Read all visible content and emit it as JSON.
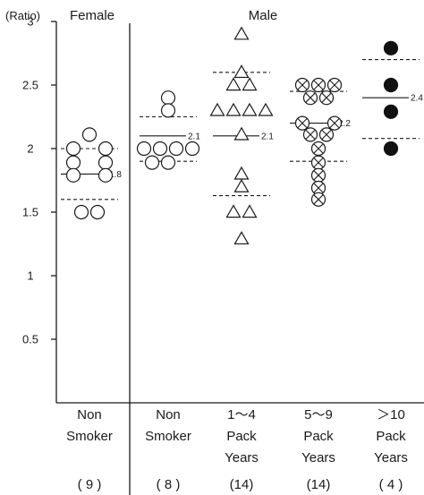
{
  "chart_data": {
    "type": "scatter",
    "y_unit": "(Ratio)",
    "yticks": [
      "0.5",
      "1",
      "1.5",
      "2",
      "2.5",
      "3"
    ],
    "ylim": [
      0.2,
      3.15
    ],
    "grid": false,
    "groups": [
      {
        "header": "Female",
        "labels": [
          "Non",
          "Smoker"
        ],
        "count": "( 9 )",
        "marker": "circle",
        "mean": 1.8,
        "mean_label": "1.8",
        "sd_upper": 2.0,
        "sd_lower": 1.6,
        "points": [
          [
            0,
            2.11
          ],
          [
            -1,
            2.0
          ],
          [
            1,
            2.0
          ],
          [
            -1,
            1.89
          ],
          [
            1,
            1.89
          ],
          [
            -1,
            1.79
          ],
          [
            1,
            1.79
          ],
          [
            -0.5,
            1.5
          ],
          [
            0.5,
            1.5
          ]
        ]
      },
      {
        "header": "Male",
        "labels": [
          "Non",
          "Smoker"
        ],
        "count": "( 8 )",
        "marker": "circle",
        "mean": 2.1,
        "mean_label": "2.1",
        "sd_upper": 2.25,
        "sd_lower": 1.9,
        "points": [
          [
            0,
            2.4
          ],
          [
            0,
            2.3
          ],
          [
            -1.5,
            2.0
          ],
          [
            -0.5,
            2.0
          ],
          [
            0.5,
            2.0
          ],
          [
            1.5,
            2.0
          ],
          [
            -1,
            1.89
          ],
          [
            0,
            1.89
          ]
        ]
      },
      {
        "labels": [
          "1～4",
          "Pack",
          "Years"
        ],
        "count": "(14)",
        "marker": "triangle",
        "mean": 2.1,
        "mean_label": "2.1",
        "sd_upper": 2.6,
        "sd_lower": 1.63,
        "points": [
          [
            0,
            2.9
          ],
          [
            0,
            2.6
          ],
          [
            -0.5,
            2.5
          ],
          [
            0.5,
            2.5
          ],
          [
            -1.5,
            2.3
          ],
          [
            -0.5,
            2.3
          ],
          [
            0.5,
            2.3
          ],
          [
            1.5,
            2.3
          ],
          [
            0,
            2.11
          ],
          [
            0,
            1.8
          ],
          [
            0,
            1.7
          ],
          [
            -0.5,
            1.5
          ],
          [
            0.5,
            1.5
          ],
          [
            0,
            1.29
          ]
        ]
      },
      {
        "labels": [
          "5～9",
          "Pack",
          "Years"
        ],
        "count": "(14)",
        "marker": "crossed-circle",
        "mean": 2.2,
        "mean_label": "2.2",
        "sd_upper": 2.45,
        "sd_lower": 1.9,
        "points": [
          [
            -1,
            2.5
          ],
          [
            0,
            2.5
          ],
          [
            1,
            2.5
          ],
          [
            -0.5,
            2.4
          ],
          [
            0.5,
            2.4
          ],
          [
            -1,
            2.2
          ],
          [
            1,
            2.2
          ],
          [
            -0.5,
            2.11
          ],
          [
            0.5,
            2.11
          ],
          [
            0,
            2.0
          ],
          [
            0,
            1.89
          ],
          [
            0,
            1.79
          ],
          [
            0,
            1.69
          ],
          [
            0,
            1.6
          ]
        ]
      },
      {
        "labels": [
          "＞10",
          "Pack",
          "Years"
        ],
        "count": "( 4 )",
        "marker": "filled-circle",
        "mean": 2.4,
        "mean_label": "2.4",
        "sd_upper": 2.7,
        "sd_lower": 2.08,
        "points": [
          [
            0,
            2.79
          ],
          [
            0,
            2.5
          ],
          [
            0,
            2.29
          ],
          [
            0,
            2.0
          ]
        ]
      }
    ]
  }
}
